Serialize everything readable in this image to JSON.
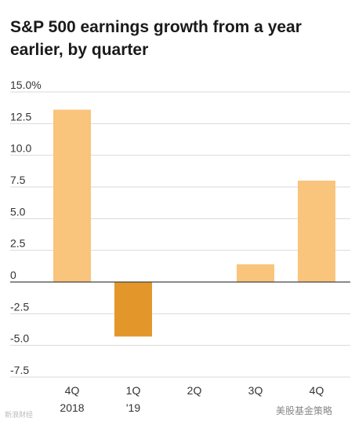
{
  "chart_data": {
    "type": "bar",
    "title": "S&P 500 earnings growth from a year earlier, by quarter",
    "categories": [
      "4Q\n2018",
      "1Q\n'19",
      "2Q",
      "3Q",
      "4Q"
    ],
    "values": [
      13.6,
      -4.3,
      null,
      1.4,
      8.0
    ],
    "y_ticks": [
      "15.0%",
      "12.5",
      "10.0",
      "7.5",
      "5.0",
      "2.5",
      "0",
      "-2.5",
      "-5.0",
      "-7.5"
    ],
    "ylim": [
      -7.5,
      15.0
    ],
    "xlabel": "",
    "ylabel": "",
    "grid": true,
    "colors": {
      "positive": "#f9c47b",
      "negative": "#e3972a",
      "grid": "#d9d9d9",
      "zero_line": "#444444"
    }
  },
  "watermarks": {
    "left": "新浪财经",
    "right": "美股基金策略"
  }
}
